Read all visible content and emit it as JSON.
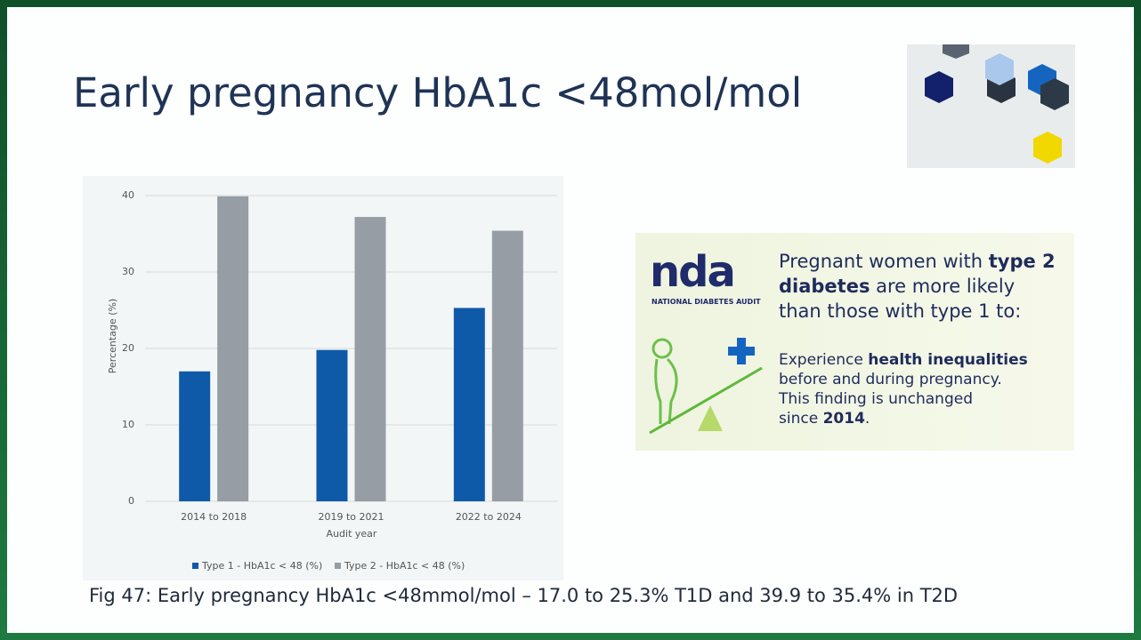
{
  "title": "Early pregnancy HbA1c <48mol/mol",
  "caption": "Fig 47: Early pregnancy HbA1c <48mmol/mol – 17.0 to 25.3% T1D and 39.9 to 35.4% in T2D",
  "chart_data": {
    "type": "bar",
    "categories": [
      "2014 to 2018",
      "2019 to 2021",
      "2022 to 2024"
    ],
    "series": [
      {
        "name": "Type 1 - HbA1c < 48 (%)",
        "color": "#0f5aa8",
        "values": [
          17.0,
          19.8,
          25.3
        ]
      },
      {
        "name": "Type 2 - HbA1c < 48 (%)",
        "color": "#969da4",
        "values": [
          39.9,
          37.2,
          35.4
        ]
      }
    ],
    "y_label": "Percentage (%)",
    "x_label": "Audit year",
    "ylim": [
      0,
      40
    ],
    "yticks": [
      0,
      10,
      20,
      30,
      40
    ],
    "grid": true,
    "legend": "bottom"
  },
  "infographic": {
    "logo": "nda",
    "logo_caption": "NATIONAL DIABETES AUDIT",
    "heading_lines": [
      [
        "Pregnant women with ",
        "type 2"
      ],
      [
        "diabetes",
        " are more likely"
      ],
      [
        "than those with type 1 to:"
      ]
    ],
    "body_lines": [
      [
        "Experience ",
        "health inequalities"
      ],
      [
        "before and during pregnancy."
      ],
      [
        "This finding is unchanged"
      ],
      [
        "since ",
        "2014",
        "."
      ]
    ]
  }
}
